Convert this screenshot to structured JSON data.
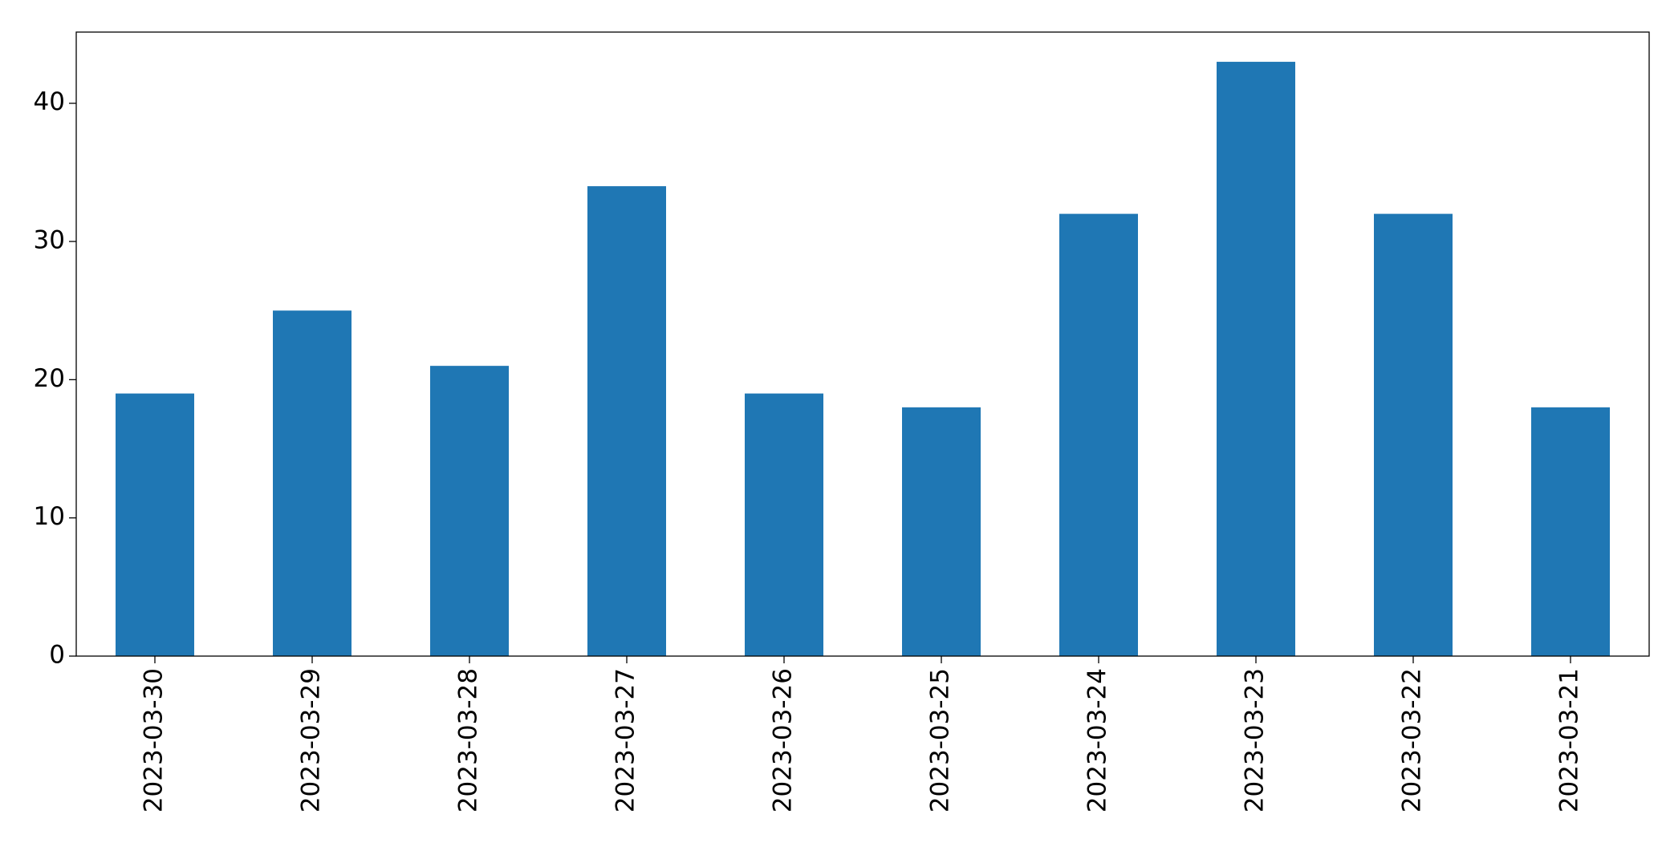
{
  "chart_data": {
    "type": "bar",
    "categories": [
      "2023-03-30",
      "2023-03-29",
      "2023-03-28",
      "2023-03-27",
      "2023-03-26",
      "2023-03-25",
      "2023-03-24",
      "2023-03-23",
      "2023-03-22",
      "2023-03-21"
    ],
    "values": [
      19,
      25,
      21,
      34,
      19,
      18,
      32,
      43,
      32,
      18
    ],
    "color": "#1f77b4",
    "ylim": [
      0,
      45.15
    ],
    "yticks": [
      0,
      10,
      20,
      30,
      40
    ],
    "grid": false
  }
}
